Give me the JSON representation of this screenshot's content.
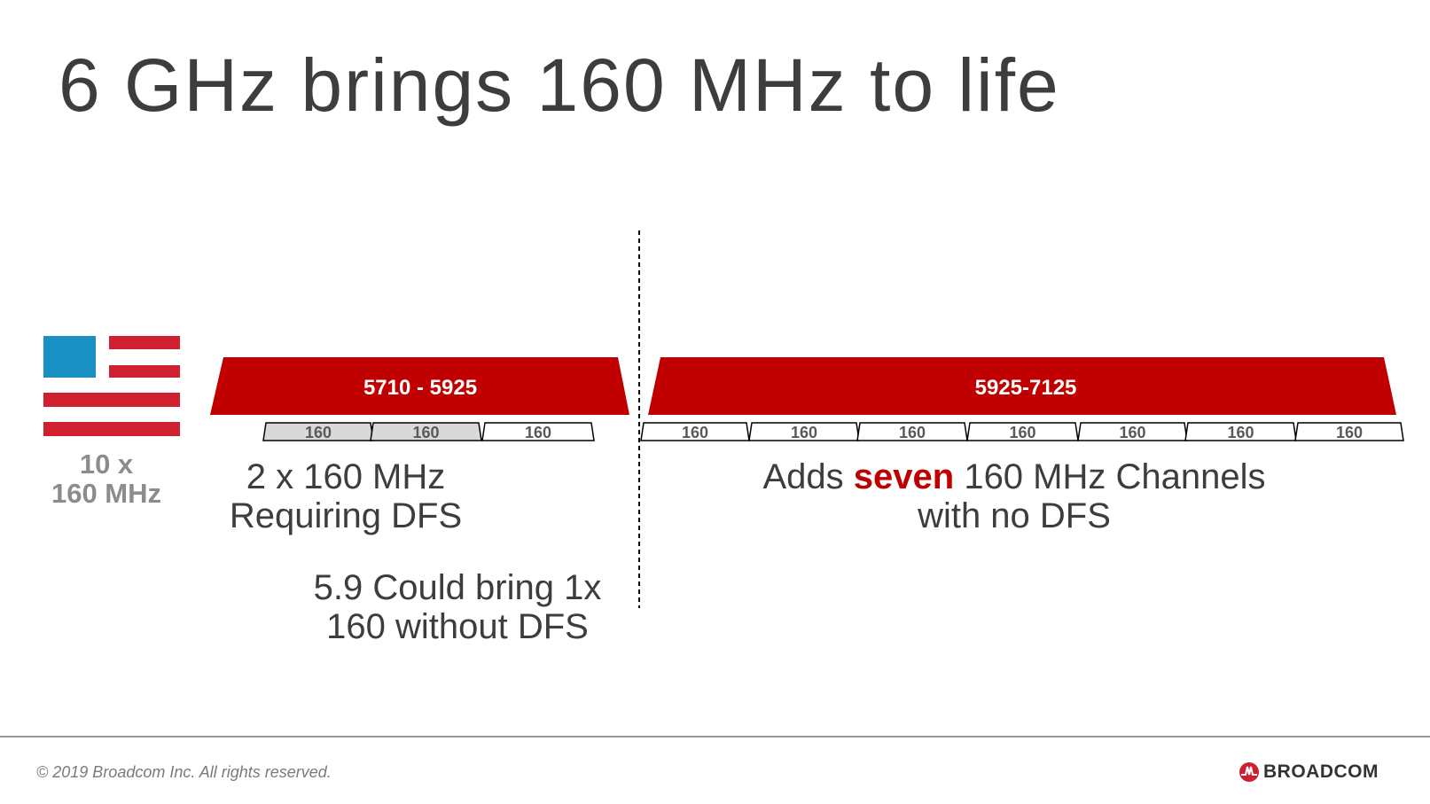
{
  "title": "6 GHz brings 160 MHz to life",
  "flag": {
    "caption_line1": "10 x",
    "caption_line2": "160 MHz",
    "blue": "#1a8fc4",
    "red": "#d02030"
  },
  "left_band": {
    "label": "5710 - 5925",
    "channels": [
      {
        "label": "160",
        "dfs": true
      },
      {
        "label": "160",
        "dfs": true
      },
      {
        "label": "160",
        "dfs": false
      }
    ],
    "text_line1": "2 x 160 MHz",
    "text_line2": "Requiring DFS",
    "note_line1": "5.9 Could bring 1x",
    "note_line2": "160 without DFS"
  },
  "right_band": {
    "label": "5925-7125",
    "channels": [
      {
        "label": "160"
      },
      {
        "label": "160"
      },
      {
        "label": "160"
      },
      {
        "label": "160"
      },
      {
        "label": "160"
      },
      {
        "label": "160"
      },
      {
        "label": "160"
      }
    ],
    "text_pre": "Adds ",
    "text_emph": "seven",
    "text_post": " 160 MHz Channels",
    "text_line2": "with no DFS"
  },
  "colors": {
    "band": "#c00000",
    "dfs_fill": "#d9d9d9",
    "text": "#3d3d3d"
  },
  "footer": {
    "copyright": "© 2019 Broadcom Inc.  All rights reserved.",
    "logo": "BROADCOM"
  }
}
